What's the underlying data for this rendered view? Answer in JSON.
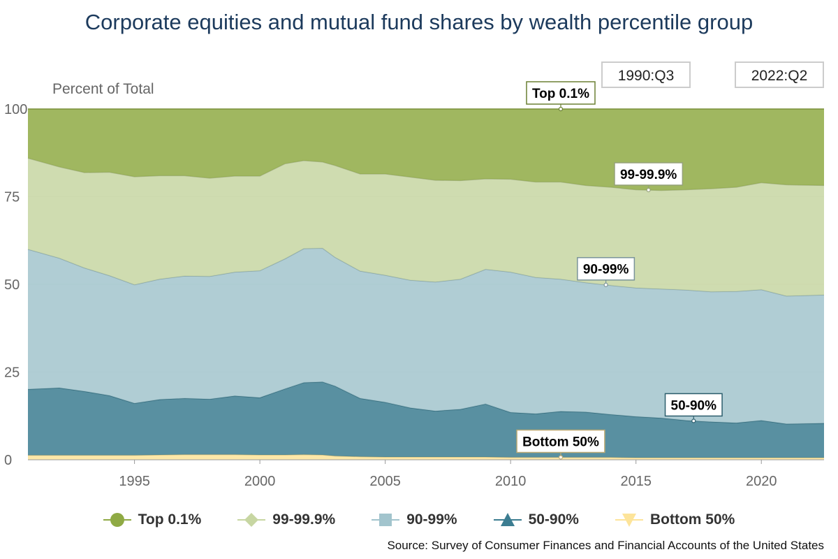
{
  "chart_data": {
    "type": "area",
    "stacked": true,
    "title": "Corporate equities and mutual fund shares by wealth percentile group",
    "ylabel": "Percent of Total",
    "xlabel": "",
    "ylim": [
      0,
      100
    ],
    "xlim": [
      1990.75,
      2022.5
    ],
    "y_ticks": [
      0,
      25,
      50,
      75,
      100
    ],
    "x_ticks": [
      1995,
      2000,
      2005,
      2010,
      2015,
      2020
    ],
    "range_start": "1990:Q3",
    "range_end": "2022:Q2",
    "legend_position": "bottom",
    "source": "Source: Survey of Consumer Finances and Financial Accounts of the United States",
    "x": [
      1990.75,
      1992,
      1993,
      1994,
      1995,
      1996,
      1997,
      1998,
      1999,
      2000,
      2001,
      2001.75,
      2002.5,
      2003,
      2004,
      2005,
      2006,
      2007,
      2008,
      2009,
      2010,
      2011,
      2012,
      2013,
      2014,
      2015,
      2016,
      2017,
      2018,
      2019,
      2020,
      2021,
      2022.5
    ],
    "series": [
      {
        "name": "Bottom 50%",
        "color": "#fde49a",
        "values": [
          1.3,
          1.3,
          1.3,
          1.3,
          1.3,
          1.4,
          1.5,
          1.5,
          1.5,
          1.4,
          1.4,
          1.5,
          1.4,
          1.1,
          0.9,
          0.8,
          0.8,
          0.8,
          0.8,
          0.8,
          0.7,
          0.7,
          0.7,
          0.7,
          0.7,
          0.6,
          0.6,
          0.6,
          0.6,
          0.6,
          0.6,
          0.6,
          0.6
        ]
      },
      {
        "name": "50-90%",
        "color": "#3c7d91",
        "values": [
          18.8,
          19.2,
          18.2,
          17.0,
          14.8,
          15.8,
          16.0,
          15.8,
          16.7,
          16.3,
          18.8,
          20.5,
          20.8,
          19.9,
          16.6,
          15.6,
          14.0,
          13.1,
          13.6,
          15.1,
          12.8,
          12.4,
          13.1,
          12.9,
          12.2,
          11.7,
          11.3,
          10.6,
          10.2,
          9.9,
          10.6,
          9.6,
          9.8
        ]
      },
      {
        "name": "90-99%",
        "color": "#a2c4cd",
        "values": [
          39.9,
          37.0,
          35.2,
          34.2,
          33.8,
          34.3,
          34.9,
          35.0,
          35.3,
          36.2,
          37.1,
          38.2,
          38.1,
          36.7,
          36.3,
          36.2,
          36.4,
          36.8,
          37.1,
          38.4,
          40.0,
          38.9,
          37.7,
          36.9,
          36.8,
          36.7,
          36.8,
          37.2,
          37.1,
          37.5,
          37.3,
          36.5,
          36.6
        ]
      },
      {
        "name": "99-99.9%",
        "color": "#c7d6a2",
        "values": [
          26.0,
          26.0,
          27.2,
          29.5,
          30.8,
          29.5,
          28.6,
          28.0,
          27.4,
          27.0,
          27.1,
          25.1,
          24.6,
          26.2,
          27.7,
          28.9,
          29.4,
          29.0,
          28.1,
          25.8,
          26.5,
          27.2,
          27.7,
          27.7,
          28.0,
          28.0,
          28.1,
          28.6,
          29.4,
          29.7,
          30.5,
          31.7,
          31.2
        ]
      },
      {
        "name": "Top 0.1%",
        "color": "#8faa44",
        "values": [
          14.0,
          16.5,
          18.1,
          18.0,
          19.3,
          19.0,
          19.0,
          19.7,
          19.1,
          19.1,
          15.6,
          14.7,
          15.1,
          16.1,
          18.5,
          18.5,
          19.4,
          20.3,
          20.4,
          19.9,
          20.0,
          20.8,
          20.8,
          21.8,
          22.3,
          23.0,
          23.2,
          23.0,
          22.7,
          22.3,
          21.0,
          21.6,
          21.8
        ]
      }
    ],
    "annotations": [
      {
        "label": "Top 0.1%",
        "series": "Top 0.1%",
        "x": 2012.0
      },
      {
        "label": "99-99.9%",
        "series": "99-99.9%",
        "x": 2015.5
      },
      {
        "label": "90-99%",
        "series": "90-99%",
        "x": 2013.8
      },
      {
        "label": "50-90%",
        "series": "50-90%",
        "x": 2017.3
      },
      {
        "label": "Bottom 50%",
        "series": "Bottom 50%",
        "x": 2012.0
      }
    ]
  }
}
